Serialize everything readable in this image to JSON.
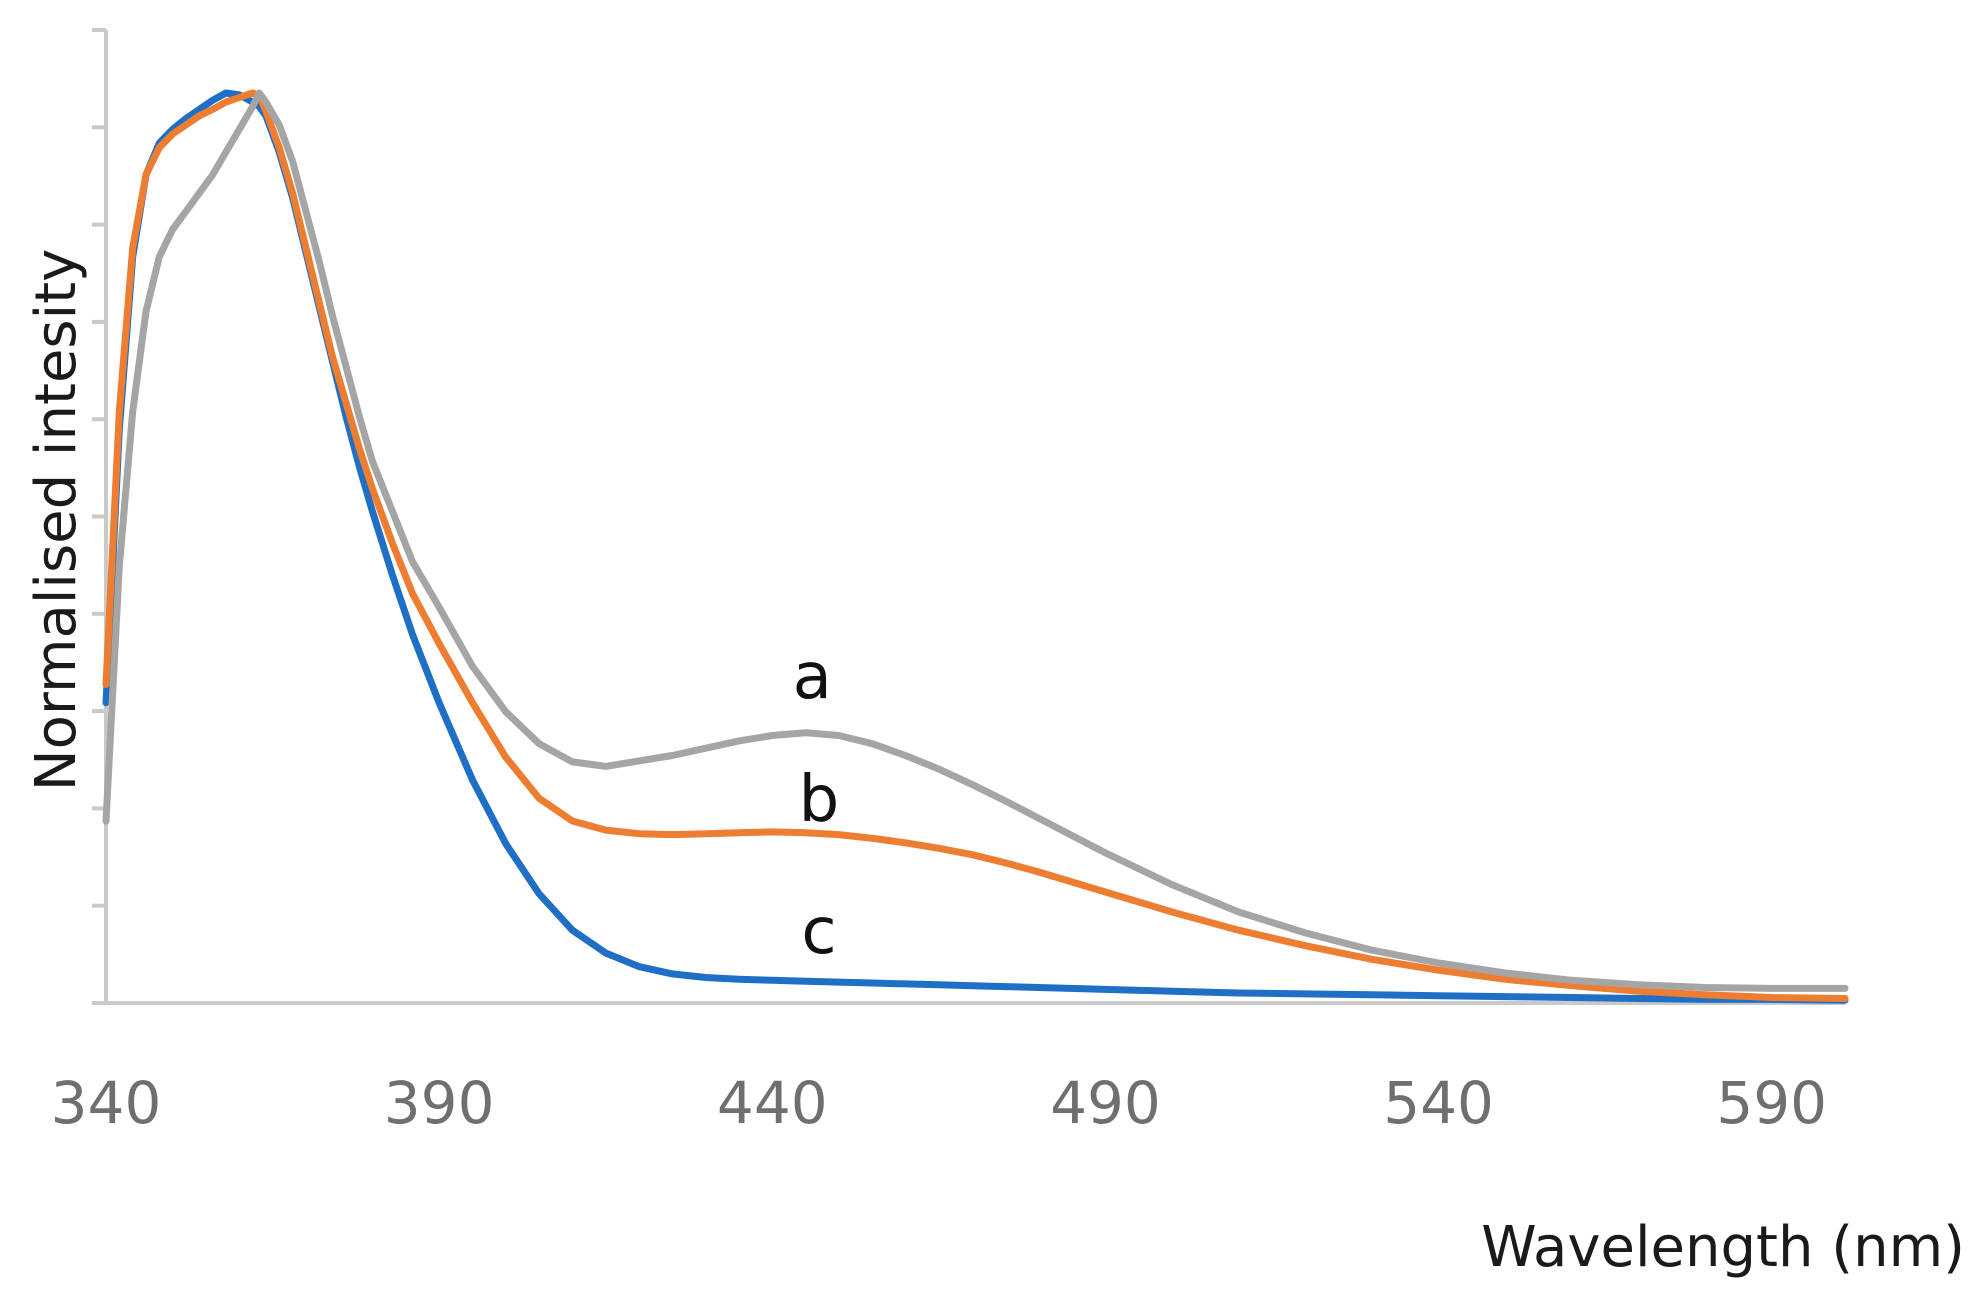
{
  "chart_data": {
    "type": "line",
    "xlabel": "Wavelength (nm)",
    "ylabel": "Normalised intesity",
    "xlim": [
      340,
      601
    ],
    "ylim": [
      0,
      1.0
    ],
    "x_ticks": [
      340,
      390,
      440,
      490,
      540,
      590
    ],
    "y_tick_count": 10,
    "grid": false,
    "legend": "none",
    "draw_order": [
      "c",
      "b",
      "a"
    ],
    "series": [
      {
        "name": "a",
        "color": "#a5a5a5",
        "x": [
          340,
          342,
          344,
          346,
          348,
          350,
          352,
          354,
          356,
          358,
          360,
          362,
          363,
          364,
          366,
          368,
          370,
          372,
          374,
          376,
          378,
          380,
          383,
          386,
          390,
          395,
          400,
          405,
          410,
          415,
          420,
          425,
          430,
          435,
          440,
          445,
          450,
          455,
          460,
          465,
          470,
          475,
          480,
          490,
          500,
          510,
          520,
          530,
          540,
          550,
          560,
          570,
          580,
          590,
          601
        ],
        "y": [
          0.2,
          0.48,
          0.65,
          0.76,
          0.82,
          0.85,
          0.87,
          0.89,
          0.91,
          0.935,
          0.96,
          0.985,
          1.0,
          0.99,
          0.965,
          0.925,
          0.87,
          0.815,
          0.755,
          0.7,
          0.645,
          0.595,
          0.54,
          0.485,
          0.435,
          0.37,
          0.32,
          0.285,
          0.265,
          0.26,
          0.266,
          0.272,
          0.28,
          0.288,
          0.294,
          0.297,
          0.294,
          0.285,
          0.272,
          0.257,
          0.24,
          0.222,
          0.203,
          0.165,
          0.13,
          0.1,
          0.077,
          0.058,
          0.044,
          0.033,
          0.025,
          0.02,
          0.017,
          0.016,
          0.016
        ]
      },
      {
        "name": "b",
        "color": "#ed7d31",
        "x": [
          340,
          342,
          344,
          346,
          348,
          350,
          352,
          354,
          356,
          358,
          360,
          362,
          363,
          364,
          366,
          368,
          370,
          372,
          374,
          376,
          378,
          380,
          383,
          386,
          390,
          395,
          400,
          405,
          410,
          415,
          420,
          425,
          430,
          435,
          440,
          445,
          450,
          455,
          460,
          465,
          470,
          475,
          480,
          490,
          500,
          510,
          520,
          530,
          540,
          550,
          560,
          570,
          580,
          590,
          601
        ],
        "y": [
          0.35,
          0.65,
          0.83,
          0.91,
          0.94,
          0.955,
          0.965,
          0.975,
          0.982,
          0.99,
          0.995,
          1.0,
          0.997,
          0.98,
          0.94,
          0.89,
          0.83,
          0.77,
          0.71,
          0.66,
          0.61,
          0.565,
          0.505,
          0.45,
          0.395,
          0.33,
          0.27,
          0.225,
          0.2,
          0.19,
          0.186,
          0.185,
          0.186,
          0.187,
          0.188,
          0.187,
          0.185,
          0.181,
          0.176,
          0.17,
          0.163,
          0.154,
          0.144,
          0.122,
          0.1,
          0.08,
          0.063,
          0.048,
          0.036,
          0.026,
          0.019,
          0.013,
          0.009,
          0.006,
          0.005
        ]
      },
      {
        "name": "c",
        "color": "#1f6fc6",
        "x": [
          340,
          342,
          344,
          346,
          348,
          350,
          352,
          354,
          356,
          358,
          360,
          362,
          363,
          364,
          366,
          368,
          370,
          372,
          374,
          376,
          378,
          380,
          383,
          386,
          390,
          395,
          400,
          405,
          410,
          415,
          420,
          425,
          430,
          435,
          440,
          445,
          450,
          455,
          460,
          465,
          470,
          475,
          480,
          490,
          500,
          510,
          520,
          530,
          540,
          550,
          560,
          570,
          580,
          590,
          601
        ],
        "y": [
          0.33,
          0.63,
          0.82,
          0.91,
          0.945,
          0.96,
          0.972,
          0.982,
          0.992,
          1.0,
          0.998,
          0.99,
          0.985,
          0.975,
          0.935,
          0.885,
          0.825,
          0.765,
          0.705,
          0.645,
          0.59,
          0.54,
          0.47,
          0.405,
          0.33,
          0.245,
          0.175,
          0.12,
          0.08,
          0.055,
          0.04,
          0.032,
          0.028,
          0.026,
          0.025,
          0.024,
          0.023,
          0.022,
          0.021,
          0.02,
          0.019,
          0.018,
          0.017,
          0.015,
          0.013,
          0.011,
          0.01,
          0.009,
          0.008,
          0.007,
          0.006,
          0.005,
          0.004,
          0.004,
          0.003
        ]
      }
    ],
    "annotations": [
      {
        "text": "a",
        "x": 446,
        "y": 0.335
      },
      {
        "text": "b",
        "x": 447,
        "y": 0.2
      },
      {
        "text": "c",
        "x": 447,
        "y": 0.055
      }
    ]
  }
}
